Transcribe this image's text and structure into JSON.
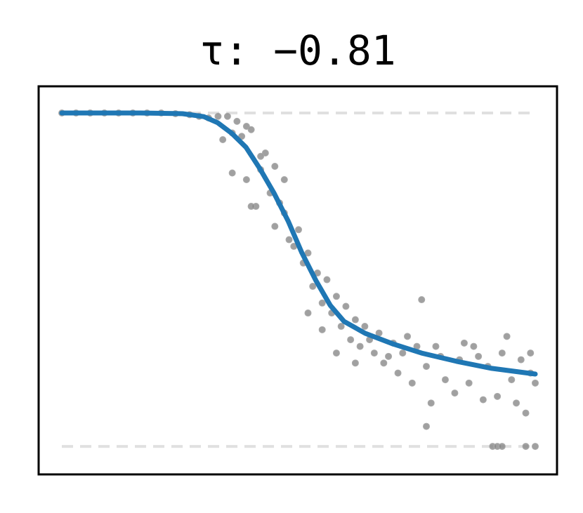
{
  "chart_data": {
    "type": "scatter",
    "title": "τ: −0.81",
    "xlim": [
      -0.049,
      1.046
    ],
    "ylim": [
      -0.084,
      1.08
    ],
    "reference_lines": [
      1,
      0
    ],
    "reference_color": "#e0e0e0",
    "points": {
      "color": "#808080",
      "x": [
        0.0,
        0.03,
        0.06,
        0.09,
        0.12,
        0.15,
        0.18,
        0.21,
        0.24,
        0.27,
        0.29,
        0.31,
        0.33,
        0.35,
        0.37,
        0.39,
        0.36,
        0.38,
        0.4,
        0.34,
        0.43,
        0.45,
        0.47,
        0.42,
        0.36,
        0.39,
        0.41,
        0.42,
        0.44,
        0.45,
        0.46,
        0.47,
        0.48,
        0.4,
        0.49,
        0.5,
        0.51,
        0.52,
        0.53,
        0.54,
        0.55,
        0.56,
        0.57,
        0.58,
        0.59,
        0.6,
        0.61,
        0.62,
        0.63,
        0.64,
        0.66,
        0.67,
        0.68,
        0.7,
        0.71,
        0.72,
        0.74,
        0.75,
        0.77,
        0.78,
        0.8,
        0.81,
        0.83,
        0.84,
        0.86,
        0.87,
        0.89,
        0.9,
        0.92,
        0.93,
        0.95,
        0.96,
        0.97,
        0.98,
        0.99,
        1.0,
        0.77,
        0.76,
        0.91,
        0.92,
        0.93,
        0.98,
        1.0,
        0.52,
        0.55,
        0.58,
        0.62,
        0.65,
        0.69,
        0.73,
        0.79,
        0.85,
        0.88,
        0.94,
        0.99
      ],
      "y": [
        1.0,
        1.0,
        1.0,
        1.0,
        1.0,
        1.0,
        1.0,
        1.0,
        0.998,
        0.995,
        0.99,
        0.985,
        0.99,
        0.99,
        0.975,
        0.96,
        0.94,
        0.93,
        0.95,
        0.92,
        0.88,
        0.84,
        0.8,
        0.87,
        0.82,
        0.8,
        0.72,
        0.83,
        0.76,
        0.66,
        0.73,
        0.7,
        0.62,
        0.72,
        0.6,
        0.65,
        0.55,
        0.58,
        0.48,
        0.52,
        0.43,
        0.5,
        0.4,
        0.45,
        0.36,
        0.42,
        0.32,
        0.38,
        0.3,
        0.36,
        0.28,
        0.34,
        0.25,
        0.31,
        0.22,
        0.28,
        0.19,
        0.3,
        0.24,
        0.13,
        0.27,
        0.2,
        0.16,
        0.26,
        0.19,
        0.3,
        0.14,
        0.24,
        0.15,
        0.28,
        0.2,
        0.13,
        0.26,
        0.1,
        0.22,
        0.19,
        0.06,
        0.44,
        0.0,
        0.0,
        0.0,
        0.0,
        0.0,
        0.4,
        0.35,
        0.28,
        0.25,
        0.32,
        0.27,
        0.33,
        0.3,
        0.31,
        0.27,
        0.33,
        0.28
      ]
    },
    "curve": {
      "color": "#1f77b4",
      "x": [
        0,
        0.166,
        0.255,
        0.3,
        0.329,
        0.359,
        0.389,
        0.418,
        0.448,
        0.478,
        0.507,
        0.537,
        0.567,
        0.596,
        0.641,
        0.7,
        0.76,
        0.834,
        0.908,
        1.0
      ],
      "y": [
        1.0,
        1.0,
        0.998,
        0.989,
        0.971,
        0.939,
        0.897,
        0.834,
        0.76,
        0.676,
        0.581,
        0.497,
        0.423,
        0.375,
        0.339,
        0.307,
        0.28,
        0.255,
        0.234,
        0.217
      ]
    }
  }
}
